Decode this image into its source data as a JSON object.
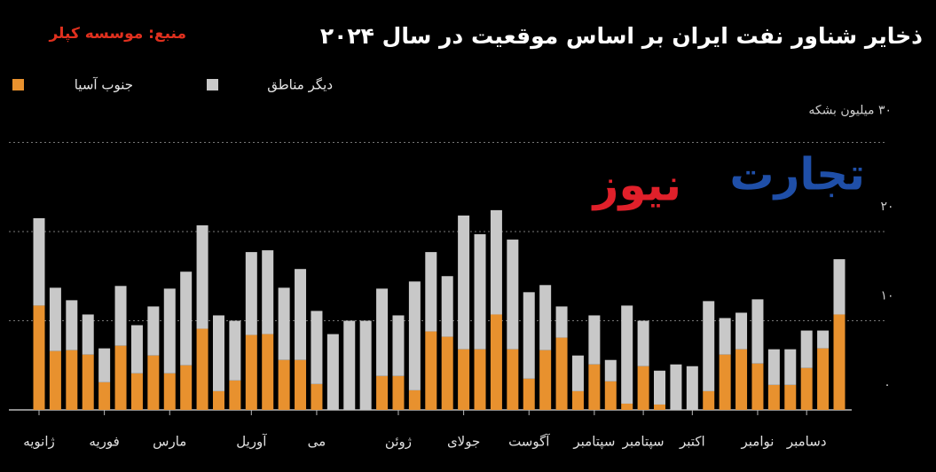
{
  "chart_data": {
    "type": "stacked_bar",
    "title": "ذخایر شناور نفت ایران بر اساس موقعیت در سال ۲۰۲۴",
    "source": "منبع: موسسه کپلر",
    "watermark": [
      "تجارت",
      "نیوز"
    ],
    "categories": [
      "ژانویه",
      null,
      null,
      null,
      "فوریه",
      null,
      null,
      null,
      "مارس",
      null,
      null,
      null,
      null,
      "آوریل",
      null,
      null,
      null,
      "می",
      null,
      null,
      null,
      null,
      "ژوئن",
      null,
      null,
      null,
      "جولای",
      null,
      null,
      null,
      "آگوست",
      null,
      null,
      null,
      "سپتامبر",
      null,
      null,
      "سپتامبر",
      null,
      null,
      "اکتبر",
      null,
      null,
      null,
      "نوامبر",
      null,
      null,
      "دسامبر",
      null,
      null
    ],
    "series": [
      {
        "name": "جنوب آسیا",
        "color": "#e8912e",
        "values": [
          11.7,
          6.6,
          6.7,
          6.2,
          3.1,
          7.2,
          4.1,
          6.1,
          4.1,
          5.0,
          9.1,
          2.1,
          3.3,
          8.4,
          8.5,
          5.6,
          5.6,
          2.9,
          0,
          0,
          0,
          3.8,
          3.8,
          2.2,
          8.8,
          8.2,
          6.8,
          6.8,
          10.7,
          6.8,
          3.5,
          6.7,
          8.1,
          2.1,
          5.1,
          3.2,
          0.7,
          4.9,
          0.6,
          0,
          0,
          2.1,
          6.2,
          6.8,
          5.2,
          2.8,
          2.8,
          4.7,
          6.9,
          10.7
        ]
      },
      {
        "name": "دیگر مناطق",
        "color": "#c8c8c8",
        "values": [
          9.8,
          7.1,
          5.6,
          4.5,
          3.8,
          6.7,
          5.4,
          5.5,
          9.5,
          10.5,
          11.6,
          8.5,
          6.7,
          9.3,
          9.4,
          8.1,
          10.2,
          8.2,
          8.5,
          10.0,
          10.0,
          9.8,
          6.8,
          12.2,
          8.9,
          6.8,
          15.0,
          12.9,
          11.7,
          12.3,
          9.7,
          7.3,
          3.5,
          4.0,
          5.5,
          2.4,
          11.0,
          5.1,
          3.8,
          5.1,
          4.9,
          10.1,
          4.1,
          4.1,
          7.2,
          4.0,
          4.0,
          4.2,
          2.0,
          6.2
        ]
      }
    ],
    "ylim": [
      0,
      30
    ],
    "yticks": [
      {
        "value": 0,
        "label": "۰"
      },
      {
        "value": 10,
        "label": "۱۰"
      },
      {
        "value": 20,
        "label": "۲۰"
      },
      {
        "value": 30,
        "label": "۳۰ میلیون بشکه"
      }
    ],
    "grid": true
  }
}
